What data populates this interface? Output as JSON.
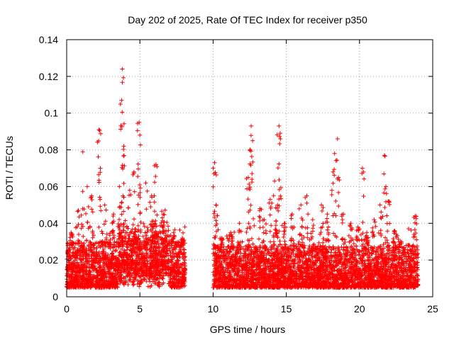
{
  "chart_data": {
    "type": "scatter",
    "title": "Day 202 of 2025, Rate Of TEC Index for receiver p350",
    "xlabel": "GPS time / hours",
    "ylabel": "ROTI / TECUs",
    "xlim": [
      0,
      25
    ],
    "ylim": [
      0,
      0.14
    ],
    "grid": true,
    "marker": "+",
    "color": "#ff0000",
    "x_ticks": [
      0,
      5,
      10,
      15,
      20,
      25
    ],
    "x_tick_labels": [
      "0",
      "5",
      "10",
      "15",
      "20",
      "25"
    ],
    "y_ticks": [
      0,
      0.02,
      0.04,
      0.06,
      0.08,
      0.1,
      0.12,
      0.14
    ],
    "y_tick_labels": [
      "0",
      "0.02",
      "0.04",
      "0.06",
      "0.08",
      "0.1",
      "0.12",
      "0.14"
    ],
    "series": [
      {
        "name": "ROTI",
        "segments": [
          {
            "x_start": 0.0,
            "x_end": 8.1,
            "typical_low": 0.005,
            "typical_high": 0.03
          },
          {
            "x_start": 10.0,
            "x_end": 24.0,
            "typical_low": 0.005,
            "typical_high": 0.028
          }
        ],
        "peaks": [
          [
            0.3,
            0.035
          ],
          [
            0.8,
            0.047
          ],
          [
            1.1,
            0.079
          ],
          [
            1.4,
            0.06
          ],
          [
            1.7,
            0.055
          ],
          [
            2.2,
            0.091
          ],
          [
            2.3,
            0.07
          ],
          [
            2.6,
            0.05
          ],
          [
            3.2,
            0.045
          ],
          [
            3.6,
            0.06
          ],
          [
            3.8,
            0.124
          ],
          [
            3.75,
            0.107
          ],
          [
            3.9,
            0.082
          ],
          [
            4.3,
            0.058
          ],
          [
            4.6,
            0.068
          ],
          [
            4.95,
            0.095
          ],
          [
            5.0,
            0.088
          ],
          [
            5.4,
            0.062
          ],
          [
            5.8,
            0.055
          ],
          [
            6.1,
            0.072
          ],
          [
            6.6,
            0.045
          ],
          [
            7.3,
            0.035
          ],
          [
            7.9,
            0.032
          ],
          [
            10.1,
            0.073
          ],
          [
            10.2,
            0.05
          ],
          [
            10.6,
            0.032
          ],
          [
            11.2,
            0.035
          ],
          [
            11.8,
            0.04
          ],
          [
            12.4,
            0.065
          ],
          [
            12.6,
            0.093
          ],
          [
            12.7,
            0.085
          ],
          [
            13.2,
            0.048
          ],
          [
            13.5,
            0.042
          ],
          [
            13.9,
            0.053
          ],
          [
            14.2,
            0.063
          ],
          [
            14.4,
            0.05
          ],
          [
            14.5,
            0.093
          ],
          [
            14.6,
            0.086
          ],
          [
            14.9,
            0.04
          ],
          [
            15.4,
            0.045
          ],
          [
            16.0,
            0.05
          ],
          [
            16.4,
            0.055
          ],
          [
            16.8,
            0.042
          ],
          [
            17.4,
            0.05
          ],
          [
            17.8,
            0.045
          ],
          [
            18.2,
            0.068
          ],
          [
            18.3,
            0.078
          ],
          [
            18.5,
            0.086
          ],
          [
            18.9,
            0.045
          ],
          [
            19.4,
            0.04
          ],
          [
            19.9,
            0.038
          ],
          [
            20.2,
            0.07
          ],
          [
            20.5,
            0.035
          ],
          [
            21.0,
            0.042
          ],
          [
            21.4,
            0.05
          ],
          [
            21.7,
            0.077
          ],
          [
            21.8,
            0.06
          ],
          [
            22.0,
            0.052
          ],
          [
            22.4,
            0.036
          ],
          [
            22.8,
            0.03
          ],
          [
            23.3,
            0.028
          ],
          [
            23.8,
            0.044
          ]
        ]
      }
    ]
  }
}
